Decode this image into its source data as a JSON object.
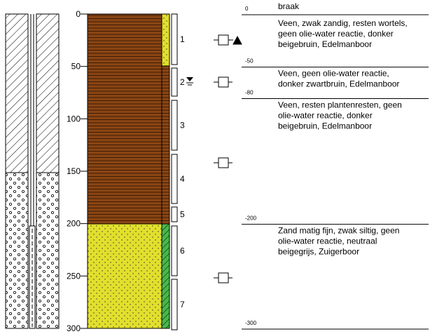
{
  "depth_axis": {
    "ticks": [
      0,
      50,
      100,
      150,
      200,
      250,
      300
    ]
  },
  "samples": [
    "1",
    "2",
    "3",
    "4",
    "5",
    "6",
    "7"
  ],
  "layers": [
    {
      "top": 0,
      "description": [
        "braak"
      ]
    },
    {
      "top": 0,
      "description": [
        "Veen, zwak zandig, resten wortels,",
        "geen olie-water reactie, donker",
        "beigebruin,  Edelmanboor"
      ]
    },
    {
      "top": -50,
      "description": [
        "Veen, geen olie-water reactie,",
        "donker zwartbruin, Edelmanboor"
      ]
    },
    {
      "top": -80,
      "description": [
        "Veen, resten plantenresten, geen",
        "olie-water reactie, donker",
        "beigebruin,  Edelmanboor"
      ]
    },
    {
      "top": -200,
      "description": [
        "Zand matig fijn, zwak siltig, geen",
        "olie-water reactie, neutraal",
        "beigegrijs,  Zuigerboor"
      ]
    }
  ],
  "bottom": -300
}
